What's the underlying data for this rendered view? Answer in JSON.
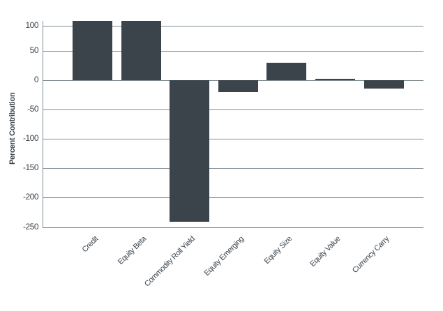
{
  "chart_data": {
    "type": "bar",
    "title": "",
    "xlabel": "",
    "ylabel": "Percent Contribution",
    "categories": [
      "Credit",
      "Equity Beta",
      "Commodity Roll Yield",
      "Equity Emerging",
      "Equity Size",
      "Equity Value",
      "Currency Carry"
    ],
    "values": [
      109,
      109,
      -241,
      -20,
      30,
      3,
      -14
    ],
    "ylim": [
      -250,
      100
    ],
    "yticks": [
      100,
      50,
      0,
      -50,
      -100,
      -150,
      -200,
      -250
    ],
    "grid": true,
    "legend": null,
    "bar_color": "#3b434b",
    "grid_color": "#7d8c92",
    "notes": "Credit and Equity Beta bars are clipped at the top of the plot area (exceed 100)."
  }
}
